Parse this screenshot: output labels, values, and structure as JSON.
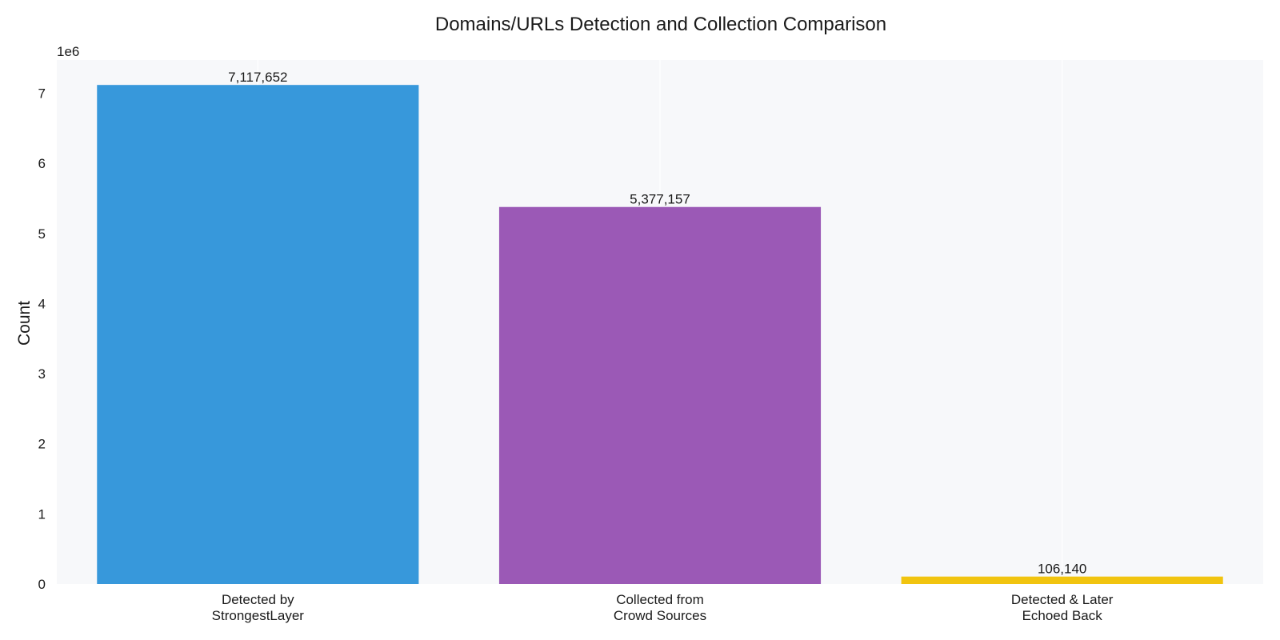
{
  "chart_data": {
    "type": "bar",
    "title": "Domains/URLs Detection and Collection Comparison",
    "xlabel": "",
    "ylabel": "Count",
    "y_scale_label": "1e6",
    "ylim": [
      0,
      7473534
    ],
    "y_ticks": [
      0,
      1000000,
      2000000,
      3000000,
      4000000,
      5000000,
      6000000,
      7000000
    ],
    "y_tick_labels": [
      "0",
      "1",
      "2",
      "3",
      "4",
      "5",
      "6",
      "7"
    ],
    "categories": [
      [
        "Detected by",
        "StrongestLayer"
      ],
      [
        "Collected from",
        "Crowd Sources"
      ],
      [
        "Detected & Later",
        "Echoed Back"
      ]
    ],
    "values": [
      7117652,
      5377157,
      106140
    ],
    "data_labels": [
      "7,117,652",
      "5,377,157",
      "106,140"
    ],
    "colors": [
      "#3798db",
      "#9b59b6",
      "#f1c40f"
    ],
    "plot_background": "#f7f8fa",
    "grid": true,
    "grid_axis": "x",
    "legend": "none"
  }
}
